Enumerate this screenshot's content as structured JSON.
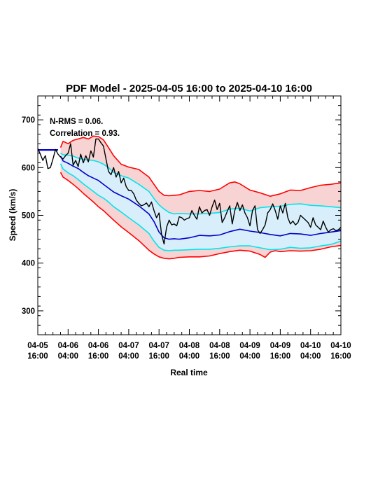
{
  "chart_data": {
    "type": "line",
    "title": "PDF Model - 2025-04-05 16:00 to 2025-04-10 16:00",
    "xlabel": "Real time",
    "ylabel": "Speed (km/s)",
    "annotations": [
      "N-RMS = 0.06.",
      "Correlation = 0.93."
    ],
    "xlim": [
      0,
      120
    ],
    "ylim": [
      250,
      750
    ],
    "yticks": [
      300,
      400,
      500,
      600,
      700
    ],
    "xticks": [
      {
        "hour": 0,
        "line1": "04-05",
        "line2": "16:00"
      },
      {
        "hour": 12,
        "line1": "04-06",
        "line2": "04:00"
      },
      {
        "hour": 24,
        "line1": "04-06",
        "line2": "16:00"
      },
      {
        "hour": 36,
        "line1": "04-07",
        "line2": "04:00"
      },
      {
        "hour": 48,
        "line1": "04-07",
        "line2": "16:00"
      },
      {
        "hour": 60,
        "line1": "04-08",
        "line2": "04:00"
      },
      {
        "hour": 72,
        "line1": "04-08",
        "line2": "16:00"
      },
      {
        "hour": 84,
        "line1": "04-09",
        "line2": "04:00"
      },
      {
        "hour": 96,
        "line1": "04-09",
        "line2": "16:00"
      },
      {
        "hour": 108,
        "line1": "04-10",
        "line2": "04:00"
      },
      {
        "hour": 120,
        "line1": "04-10",
        "line2": "16:00"
      }
    ],
    "x_units": "hours from 2025-04-05 16:00",
    "colors": {
      "outer_band_line": "#ff0000",
      "outer_band_fill": "#f8d3d3",
      "inner_band_line": "#00e5ee",
      "inner_band_fill": "#d8eefa",
      "median_line": "#0000cc",
      "observed_line": "#000000"
    },
    "series": [
      {
        "role": "outer_upper",
        "x": [
          9,
          10,
          12,
          14,
          16,
          18,
          20,
          22,
          24,
          26,
          28,
          30,
          33,
          36,
          40,
          44,
          46,
          48,
          50,
          52,
          54,
          56,
          60,
          64,
          68,
          72,
          76,
          78,
          80,
          84,
          88,
          92,
          96,
          100,
          104,
          108,
          112,
          116,
          120
        ],
        "values": [
          642,
          655,
          650,
          657,
          660,
          663,
          660,
          666,
          665,
          658,
          642,
          625,
          607,
          601,
          596,
          580,
          565,
          550,
          542,
          541,
          542,
          543,
          550,
          552,
          550,
          555,
          568,
          570,
          566,
          553,
          547,
          540,
          545,
          553,
          552,
          558,
          563,
          565,
          568
        ]
      },
      {
        "role": "inner_upper",
        "x": [
          9,
          10,
          12,
          14,
          16,
          18,
          20,
          22,
          24,
          26,
          28,
          30,
          33,
          36,
          40,
          44,
          46,
          48,
          50,
          52,
          54,
          56,
          60,
          64,
          68,
          72,
          76,
          80,
          84,
          88,
          92,
          96,
          100,
          104,
          108,
          112,
          116,
          120
        ],
        "values": [
          630,
          627,
          626,
          624,
          620,
          617,
          616,
          615,
          612,
          607,
          600,
          590,
          583,
          578,
          565,
          550,
          535,
          522,
          513,
          506,
          503,
          504,
          503,
          503,
          504,
          506,
          513,
          515,
          509,
          516,
          518,
          519,
          523,
          524,
          521,
          520,
          518,
          516
        ]
      },
      {
        "role": "median",
        "x": [
          9,
          10,
          12,
          14,
          16,
          18,
          20,
          22,
          24,
          26,
          28,
          30,
          33,
          36,
          40,
          44,
          46,
          48,
          50,
          52,
          54,
          56,
          60,
          64,
          68,
          72,
          76,
          80,
          84,
          88,
          92,
          96,
          100,
          104,
          108,
          112,
          116,
          120
        ],
        "values": [
          624,
          614,
          609,
          603,
          598,
          590,
          583,
          578,
          573,
          565,
          557,
          549,
          541,
          534,
          520,
          503,
          487,
          465,
          453,
          450,
          451,
          450,
          453,
          458,
          457,
          459,
          466,
          471,
          467,
          464,
          460,
          457,
          462,
          461,
          458,
          462,
          465,
          468
        ]
      },
      {
        "role": "inner_lower",
        "x": [
          9,
          10,
          12,
          14,
          16,
          18,
          20,
          22,
          24,
          26,
          28,
          30,
          33,
          36,
          40,
          44,
          46,
          48,
          50,
          52,
          54,
          56,
          60,
          64,
          68,
          72,
          76,
          80,
          84,
          88,
          92,
          96,
          100,
          104,
          108,
          112,
          116,
          120
        ],
        "values": [
          608,
          597,
          589,
          583,
          575,
          566,
          558,
          550,
          542,
          536,
          528,
          518,
          507,
          495,
          480,
          462,
          446,
          433,
          427,
          426,
          427,
          427,
          428,
          429,
          429,
          431,
          434,
          436,
          436,
          432,
          428,
          429,
          433,
          431,
          432,
          436,
          439,
          446
        ]
      },
      {
        "role": "outer_lower",
        "x": [
          9,
          10,
          12,
          14,
          16,
          18,
          20,
          22,
          24,
          26,
          28,
          30,
          33,
          36,
          40,
          44,
          46,
          48,
          50,
          52,
          54,
          56,
          60,
          64,
          68,
          72,
          76,
          80,
          84,
          88,
          90,
          92,
          94,
          96,
          100,
          104,
          108,
          112,
          116,
          120
        ],
        "values": [
          590,
          580,
          573,
          565,
          556,
          546,
          537,
          528,
          518,
          510,
          500,
          490,
          476,
          464,
          447,
          427,
          419,
          413,
          410,
          409,
          410,
          412,
          413,
          413,
          415,
          420,
          424,
          427,
          425,
          418,
          412,
          423,
          426,
          424,
          426,
          425,
          426,
          429,
          434,
          437
        ]
      },
      {
        "role": "observed",
        "x": [
          0,
          1,
          2,
          3,
          4,
          5,
          6,
          7,
          8,
          9,
          10,
          11,
          12,
          13,
          14,
          15,
          16,
          17,
          18,
          19,
          20,
          21,
          22,
          23,
          24,
          25,
          26,
          27,
          28,
          29,
          30,
          31,
          32,
          33,
          34,
          35,
          36,
          37,
          38,
          39,
          40,
          41,
          42,
          43,
          44,
          45,
          46,
          47,
          48,
          49,
          50,
          51,
          52,
          53,
          54,
          55,
          56,
          57,
          58,
          59,
          60,
          61,
          62,
          63,
          64,
          65,
          66,
          67,
          68,
          69,
          70,
          71,
          72,
          73,
          74,
          75,
          76,
          77,
          78,
          79,
          80,
          81,
          82,
          83,
          84,
          85,
          86,
          87,
          88,
          89,
          90,
          91,
          92,
          93,
          94,
          95,
          96,
          97,
          98,
          99,
          100,
          101,
          102,
          103,
          104,
          105,
          106,
          107,
          108,
          109,
          110,
          111,
          112,
          113,
          114,
          115,
          116,
          117,
          118,
          119,
          120
        ],
        "values": [
          640,
          628,
          615,
          625,
          598,
          600,
          618,
          638,
          628,
          622,
          618,
          625,
          630,
          650,
          605,
          615,
          602,
          628,
          610,
          625,
          612,
          635,
          622,
          660,
          660,
          652,
          645,
          618,
          592,
          585,
          600,
          580,
          592,
          568,
          578,
          560,
          552,
          552,
          545,
          532,
          525,
          520,
          522,
          526,
          518,
          528,
          510,
          495,
          505,
          460,
          440,
          475,
          490,
          480,
          482,
          478,
          497,
          495,
          490,
          493,
          495,
          510,
          500,
          492,
          518,
          505,
          510,
          512,
          500,
          518,
          532,
          512,
          525,
          485,
          495,
          508,
          520,
          482,
          510,
          527,
          510,
          522,
          505,
          495,
          478,
          510,
          520,
          470,
          462,
          470,
          480,
          505,
          512,
          524,
          510,
          492,
          520,
          505,
          525,
          495,
          482,
          488,
          480,
          485,
          500,
          495,
          490,
          485,
          475,
          495,
          480,
          475,
          470,
          488,
          475,
          465,
          470,
          472,
          468,
          470,
          475
        ]
      },
      {
        "role": "persistence",
        "x": [
          0,
          8
        ],
        "values": [
          637,
          637
        ]
      }
    ]
  }
}
